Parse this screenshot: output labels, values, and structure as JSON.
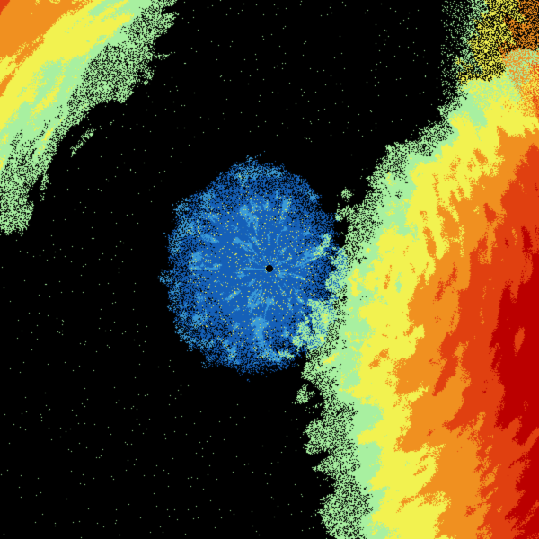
{
  "image": {
    "kind": "weather radar sweep",
    "background_color": "#000000",
    "palette": {
      "inbound_dark": "#1560b8",
      "inbound_light": "#3a9ad8",
      "cyan": "#7fd8e8",
      "green": "#a8f0a0",
      "yellow": "#f2f250",
      "orange": "#f09020",
      "red_orange": "#e04010",
      "red": "#bb0000"
    },
    "radar_site_marker_color": "#000000"
  }
}
